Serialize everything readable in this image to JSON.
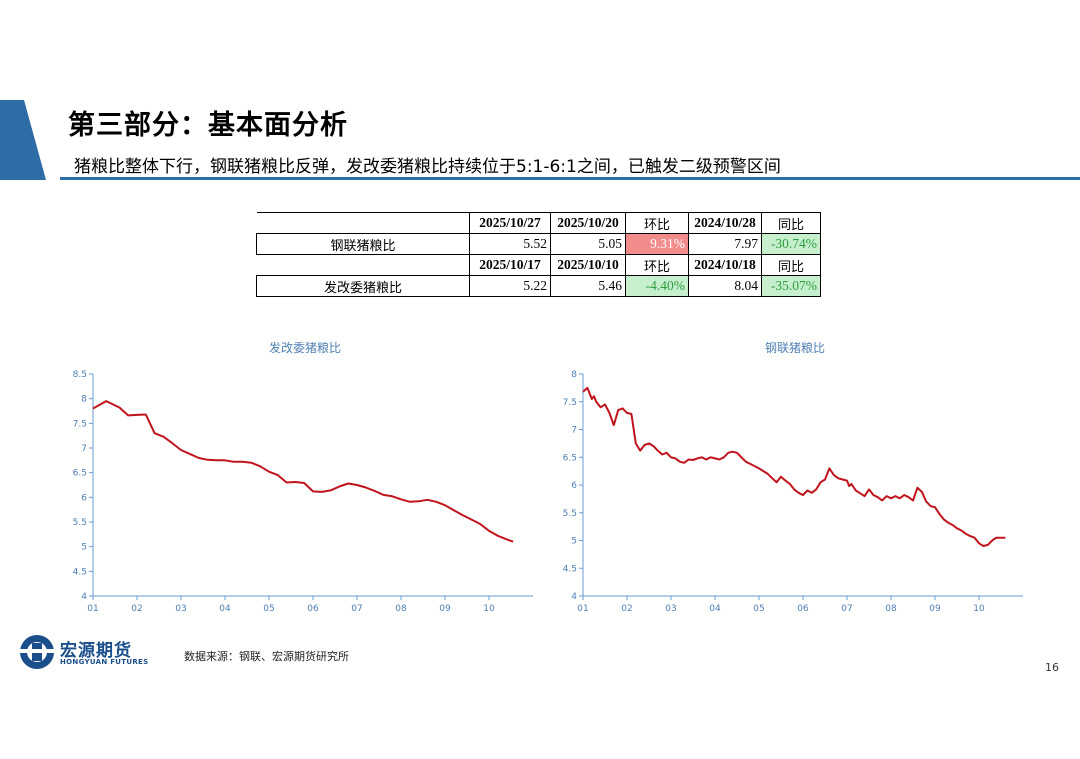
{
  "header": {
    "title": "第三部分：基本面分析",
    "subtitle": "猪粮比整体下行，钢联猪粮比反弹，发改委猪粮比持续位于5:1-6:1之间，已触发二级预警区间"
  },
  "table": {
    "rows": [
      {
        "header": [
          "2025/10/27",
          "2025/10/20",
          "环比",
          "2024/10/28",
          "同比"
        ],
        "label": "钢联猪粮比",
        "values": [
          "5.52",
          "5.05",
          "9.31%",
          "7.97",
          "-30.74%"
        ]
      },
      {
        "header": [
          "2025/10/17",
          "2025/10/10",
          "环比",
          "2024/10/18",
          "同比"
        ],
        "label": "发改委猪粮比",
        "values": [
          "5.22",
          "5.46",
          "-4.40%",
          "8.04",
          "-35.07%"
        ]
      }
    ]
  },
  "chart_data": [
    {
      "type": "line",
      "title": "发改委猪粮比",
      "ylim": [
        4,
        8.5
      ],
      "yticks": [
        "4",
        "4.5",
        "5",
        "5.5",
        "6",
        "6.5",
        "7",
        "7.5",
        "8",
        "8.5"
      ],
      "xlim": [
        1,
        11
      ],
      "xticks": [
        "01",
        "02",
        "03",
        "04",
        "05",
        "06",
        "07",
        "08",
        "09",
        "10"
      ],
      "grid": false,
      "color": "#c0141c",
      "x": [
        1.0,
        1.3,
        1.6,
        1.8,
        2.0,
        2.2,
        2.4,
        2.6,
        2.8,
        3.0,
        3.2,
        3.4,
        3.6,
        3.8,
        4.0,
        4.2,
        4.4,
        4.6,
        4.8,
        5.0,
        5.2,
        5.4,
        5.6,
        5.8,
        6.0,
        6.2,
        6.4,
        6.6,
        6.8,
        7.0,
        7.2,
        7.4,
        7.6,
        7.8,
        8.0,
        8.2,
        8.4,
        8.6,
        8.8,
        9.0,
        9.2,
        9.4,
        9.6,
        9.8,
        10.0,
        10.2,
        10.4,
        10.55
      ],
      "y": [
        7.8,
        7.95,
        7.82,
        7.66,
        7.67,
        7.68,
        7.3,
        7.23,
        7.1,
        6.96,
        6.88,
        6.8,
        6.76,
        6.75,
        6.75,
        6.72,
        6.72,
        6.7,
        6.63,
        6.52,
        6.45,
        6.3,
        6.31,
        6.29,
        6.12,
        6.11,
        6.14,
        6.22,
        6.28,
        6.25,
        6.2,
        6.13,
        6.05,
        6.02,
        5.96,
        5.91,
        5.92,
        5.95,
        5.91,
        5.84,
        5.74,
        5.64,
        5.55,
        5.46,
        5.32,
        5.22,
        5.15,
        5.1
      ]
    },
    {
      "type": "line",
      "title": "钢联猪粮比",
      "ylim": [
        4,
        8
      ],
      "yticks": [
        "4",
        "4.5",
        "5",
        "5.5",
        "6",
        "6.5",
        "7",
        "7.5",
        "8"
      ],
      "xlim": [
        1,
        11
      ],
      "xticks": [
        "01",
        "02",
        "03",
        "04",
        "05",
        "06",
        "07",
        "08",
        "09",
        "10"
      ],
      "grid": false,
      "color": "#c0141c",
      "x": [
        1.0,
        1.1,
        1.2,
        1.25,
        1.3,
        1.4,
        1.5,
        1.6,
        1.7,
        1.8,
        1.9,
        2.0,
        2.1,
        2.2,
        2.3,
        2.4,
        2.5,
        2.6,
        2.7,
        2.8,
        2.9,
        3.0,
        3.1,
        3.2,
        3.3,
        3.4,
        3.5,
        3.6,
        3.7,
        3.8,
        3.9,
        4.0,
        4.1,
        4.2,
        4.3,
        4.4,
        4.5,
        4.6,
        4.7,
        4.8,
        4.9,
        5.0,
        5.1,
        5.2,
        5.3,
        5.4,
        5.5,
        5.6,
        5.7,
        5.8,
        5.9,
        6.0,
        6.1,
        6.2,
        6.3,
        6.4,
        6.5,
        6.6,
        6.7,
        6.8,
        6.9,
        7.0,
        7.05,
        7.1,
        7.2,
        7.3,
        7.4,
        7.5,
        7.6,
        7.7,
        7.8,
        7.9,
        8.0,
        8.1,
        8.2,
        8.3,
        8.4,
        8.5,
        8.6,
        8.7,
        8.8,
        8.9,
        9.0,
        9.1,
        9.2,
        9.3,
        9.4,
        9.5,
        9.6,
        9.7,
        9.8,
        9.9,
        10.0,
        10.1,
        10.2,
        10.3,
        10.35,
        10.4,
        10.45,
        10.5,
        10.6
      ],
      "y": [
        7.68,
        7.75,
        7.55,
        7.6,
        7.5,
        7.4,
        7.45,
        7.3,
        7.08,
        7.35,
        7.38,
        7.3,
        7.28,
        6.75,
        6.62,
        6.72,
        6.75,
        6.7,
        6.62,
        6.55,
        6.58,
        6.5,
        6.48,
        6.42,
        6.4,
        6.46,
        6.45,
        6.48,
        6.5,
        6.46,
        6.5,
        6.48,
        6.46,
        6.5,
        6.58,
        6.6,
        6.58,
        6.5,
        6.42,
        6.38,
        6.34,
        6.3,
        6.25,
        6.2,
        6.12,
        6.05,
        6.15,
        6.08,
        6.02,
        5.92,
        5.86,
        5.82,
        5.9,
        5.86,
        5.92,
        6.05,
        6.1,
        6.3,
        6.18,
        6.12,
        6.1,
        6.08,
        5.98,
        6.02,
        5.9,
        5.85,
        5.8,
        5.92,
        5.82,
        5.78,
        5.72,
        5.8,
        5.76,
        5.8,
        5.76,
        5.82,
        5.78,
        5.72,
        5.95,
        5.88,
        5.7,
        5.62,
        5.6,
        5.48,
        5.38,
        5.32,
        5.28,
        5.22,
        5.18,
        5.12,
        5.08,
        5.05,
        4.95,
        4.9,
        4.92,
        5.0,
        5.03,
        5.05,
        5.05,
        5.05,
        5.05
      ]
    }
  ],
  "footer": {
    "logo_cn": "宏源期货",
    "logo_en": "HONGYUAN FUTURES",
    "source": "数据来源：钢联、宏源期货研究所",
    "page_number": "16"
  },
  "colors": {
    "accent_blue": "#2e6ca7",
    "line_red": "#c0141c",
    "axis_blue": "#6a9bd1",
    "tick_text": "#4f7fb3",
    "negative_fill": "#c6efce",
    "positive_fill": "#f28b8b"
  }
}
